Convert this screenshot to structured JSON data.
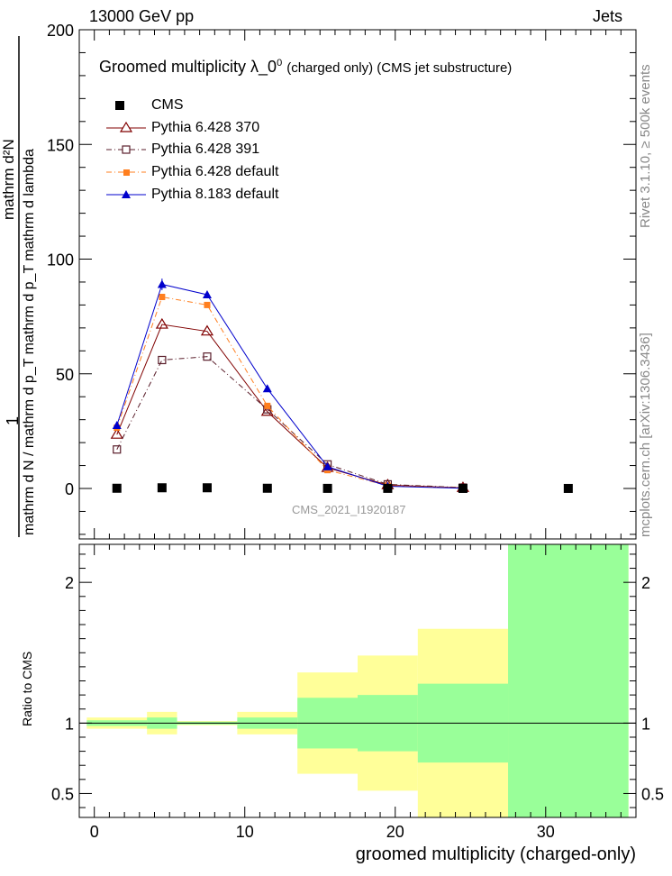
{
  "header": {
    "left": "13000 GeV pp",
    "right": "Jets"
  },
  "side_right": {
    "rivet": "Rivet 3.1.10, ≥ 500k events",
    "mcplots": "mcplots.cern.ch [arXiv:1306.3436]"
  },
  "watermark": "CMS_2021_I1920187",
  "colors": {
    "cms": "#000000",
    "py370": "#800000",
    "py391": "#5a1e2b",
    "py6def": "#ff7f1f",
    "py8": "#0000cc",
    "band_yellow": "#ffff99",
    "band_green": "#99ff99"
  },
  "chart_data": [
    {
      "type": "line",
      "title": "Groomed multiplicity  λ_0",
      "title_sup": "0",
      "title_suffix": "(charged only) (CMS jet substructure)",
      "ylabel_numerator": "mathrm d²N",
      "ylabel_prefix": "1",
      "ylabel_denominator": "mathrm d N / mathrm d p_T mathrm d p_T mathrm d lambda",
      "ylabel_full": "1/(mathrm d N / mathrm d p _T) mathrm d²N/(mathrm d p _T mathrm d lambda)",
      "xlim": [
        -1,
        36
      ],
      "ylim": [
        -22,
        200
      ],
      "yticks": [
        0,
        50,
        100,
        150,
        200
      ],
      "series": [
        {
          "name": "CMS",
          "marker": "square-filled",
          "x": [
            1.5,
            4.5,
            7.5,
            11.5,
            15.5,
            19.5,
            24.5,
            31.5
          ],
          "y": [
            0.1,
            0.3,
            0.3,
            0.1,
            0.05,
            0.05,
            0.02,
            0.02
          ]
        },
        {
          "name": "Pythia 6.428 370",
          "marker": "triangle-open",
          "x": [
            1.5,
            4.5,
            7.5,
            11.5,
            15.5,
            19.5,
            24.5
          ],
          "y": [
            23.5,
            71.5,
            68.5,
            33.5,
            9.0,
            1.5,
            0.3
          ]
        },
        {
          "name": "Pythia 6.428 391",
          "marker": "square-open",
          "x": [
            1.5,
            4.5,
            7.5,
            11.5,
            15.5,
            19.5,
            24.5
          ],
          "y": [
            17.0,
            56.0,
            57.5,
            34.5,
            10.5,
            1.8,
            0.4
          ]
        },
        {
          "name": "Pythia 6.428 default",
          "marker": "square-filled-small",
          "x": [
            1.5,
            4.5,
            7.5,
            11.5,
            15.5,
            19.5,
            24.5
          ],
          "y": [
            26.5,
            83.5,
            80.0,
            36.0,
            8.0,
            1.2,
            0.2
          ]
        },
        {
          "name": "Pythia 8.183 default",
          "marker": "triangle-filled",
          "x": [
            1.5,
            4.5,
            7.5,
            11.5,
            15.5,
            19.5,
            24.5
          ],
          "y": [
            27.5,
            89.0,
            84.5,
            43.5,
            9.5,
            1.0,
            0.1
          ],
          "yerr": [
            1.0,
            2.5,
            1.5,
            1.0,
            0.5,
            0.2,
            0.1
          ]
        }
      ]
    },
    {
      "type": "area",
      "ylabel": "Ratio to CMS",
      "xlabel": "groomed multiplicity (charged-only)",
      "xlim": [
        -1,
        36
      ],
      "ylim": [
        0.33,
        2.27
      ],
      "xticks": [
        0,
        10,
        20,
        30
      ],
      "yticks": [
        0.5,
        1,
        2
      ],
      "reference_line": 1,
      "bins": [
        {
          "lo": -0.5,
          "hi": 3.5,
          "yellow": [
            0.96,
            1.04
          ],
          "green": [
            0.98,
            1.02
          ]
        },
        {
          "lo": 3.5,
          "hi": 5.5,
          "yellow": [
            0.92,
            1.08
          ],
          "green": [
            0.96,
            1.04
          ]
        },
        {
          "lo": 5.5,
          "hi": 9.5,
          "yellow": [
            0.985,
            1.015
          ],
          "green": [
            0.99,
            1.01
          ]
        },
        {
          "lo": 9.5,
          "hi": 13.5,
          "yellow": [
            0.92,
            1.08
          ],
          "green": [
            0.96,
            1.04
          ]
        },
        {
          "lo": 13.5,
          "hi": 17.5,
          "yellow": [
            0.64,
            1.36
          ],
          "green": [
            0.82,
            1.18
          ]
        },
        {
          "lo": 17.5,
          "hi": 21.5,
          "yellow": [
            0.52,
            1.48
          ],
          "green": [
            0.8,
            1.2
          ]
        },
        {
          "lo": 21.5,
          "hi": 27.5,
          "yellow": [
            0.33,
            1.67
          ],
          "green": [
            0.72,
            1.28
          ]
        },
        {
          "lo": 27.5,
          "hi": 35.5,
          "yellow": [
            0.33,
            2.27
          ],
          "green": [
            0.33,
            2.27
          ]
        }
      ]
    }
  ]
}
